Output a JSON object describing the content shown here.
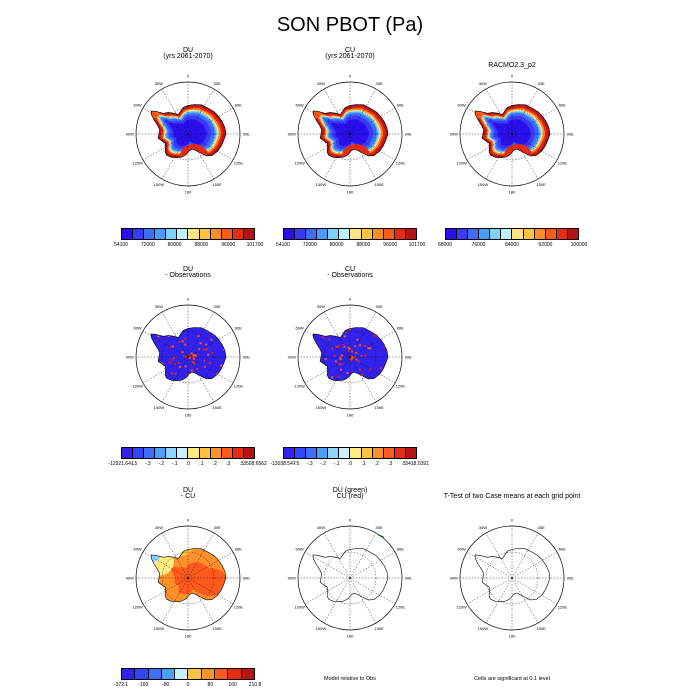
{
  "title": "SON PBOT (Pa)",
  "colors": {
    "abs": [
      "#2b10ee",
      "#3a3aff",
      "#3f6dff",
      "#4a9bff",
      "#7fd0ff",
      "#bfefff",
      "#ffe57f",
      "#ffc240",
      "#ff8c28",
      "#ff5a1e",
      "#e62d14",
      "#b41414"
    ],
    "diff": [
      "#3322ee",
      "#3344ff",
      "#3f6dff",
      "#4aa0ff",
      "#8fd6ff",
      "#c8f0ff",
      "#ffeb80",
      "#ffc240",
      "#ff902a",
      "#ff5a1e",
      "#e62d14",
      "#b41414"
    ]
  },
  "lon_labels": [
    "0",
    "30E",
    "60E",
    "90E",
    "120E",
    "150E",
    "180",
    "150W",
    "120W",
    "90W",
    "60W",
    "30W"
  ],
  "panels": [
    {
      "title": "DU",
      "subtitle": "(yrs 2061-2070)",
      "kind": "abs",
      "ticks": [
        "54100",
        "72000",
        "80000",
        "88000",
        "96000",
        "101700"
      ]
    },
    {
      "title": "CU",
      "subtitle": "(yrs 2061-2070)",
      "kind": "abs",
      "ticks": [
        "54100",
        "72000",
        "80000",
        "88000",
        "96000",
        "101700"
      ]
    },
    {
      "title": "RACMO2.3_p2",
      "subtitle": "",
      "kind": "abs",
      "ticks": [
        "68000",
        "76000",
        "84000",
        "92000",
        "100000"
      ]
    },
    {
      "title": "DU",
      "subtitle": "- Observations",
      "kind": "obs",
      "ticks": [
        "-12921.641",
        "-.5",
        "-.3",
        "-.2",
        "-.1",
        ".0",
        ".1",
        ".2",
        ".3",
        ".5",
        "3508.6562"
      ]
    },
    {
      "title": "CU",
      "subtitle": "- Observations",
      "kind": "obs",
      "ticks": [
        "-13038.547",
        "-.5",
        "-.3",
        "-.2",
        "-.1",
        ".0",
        ".1",
        ".2",
        ".3",
        ".5",
        "3418.0391"
      ]
    },
    {
      "title": "DU",
      "subtitle": "- CU",
      "kind": "diff",
      "ticks": [
        "-372.1",
        "-160",
        "-80",
        "0",
        "80",
        "160",
        "210.8"
      ]
    },
    {
      "title": "DU (green)",
      "subtitle": "CU (red)",
      "kind": "outline",
      "note": "Model relative to Obs"
    },
    {
      "title": "T-Test of two Case means at each grid point",
      "subtitle": "",
      "kind": "outline",
      "note": "Cells are significant at 0.1 level"
    }
  ]
}
